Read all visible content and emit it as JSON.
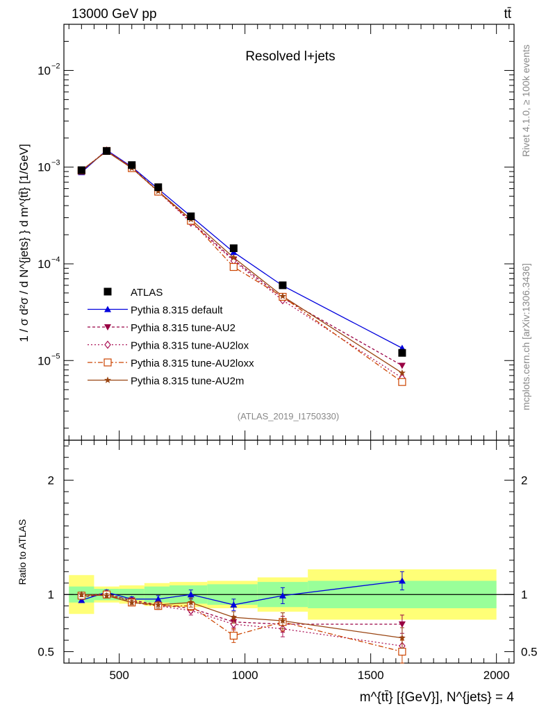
{
  "header": {
    "energy_label": "13000 GeV pp",
    "process_label": "tt̄"
  },
  "side_labels": {
    "rivet": "Rivet 4.1.0, ≥ 100k events",
    "mcplots": "mcplots.cern.ch [arXiv:1306.3436]"
  },
  "chart_data": {
    "type": "line",
    "title": "Resolved l+jets",
    "analysis_id": "(ATLAS_2019_I1750330)",
    "xlabel": "m^{tt̄} [{GeV}], N^{jets} = 4",
    "ylabel_main": "1 / σ d²σ / d N^{jets} } d m^{tt̄} [1/GeV]",
    "ylabel_ratio": "Ratio to ATLAS",
    "xlim": [
      280,
      2070
    ],
    "ylim_main_log": [
      1.5e-06,
      0.03
    ],
    "ylim_ratio": [
      0.4,
      2.35
    ],
    "x_ticks": [
      500,
      1000,
      1500,
      2000
    ],
    "x_tick_labels": [
      "500",
      "1000",
      "1500",
      "2000"
    ],
    "y_ticks_main": [
      "10^-5",
      "10^-4",
      "10^-3",
      "10^-2"
    ],
    "y_ticks_ratio": [
      "0.5",
      "1",
      "2"
    ],
    "bins": [
      [
        300,
        400
      ],
      [
        400,
        500
      ],
      [
        500,
        600
      ],
      [
        600,
        700
      ],
      [
        700,
        850
      ],
      [
        850,
        1050
      ],
      [
        1050,
        1250
      ],
      [
        1250,
        2000
      ]
    ],
    "x": [
      350,
      450,
      550,
      655,
      785,
      955,
      1150,
      1625
    ],
    "atlas": {
      "name": "ATLAS",
      "values": [
        0.00093,
        0.00147,
        0.00105,
        0.00062,
        0.00031,
        0.000145,
        6e-05,
        1.2e-05
      ]
    },
    "band_inner": [
      0.07,
      0.05,
      0.05,
      0.07,
      0.08,
      0.09,
      0.11,
      0.12
    ],
    "band_outer": [
      0.17,
      0.07,
      0.08,
      0.1,
      0.11,
      0.12,
      0.15,
      0.22
    ],
    "series": [
      {
        "name": "Pythia 8.315 default",
        "color": "#0000dd",
        "marker": "triangle-up",
        "dash": "",
        "ratio": [
          0.95,
          1.02,
          0.96,
          0.96,
          1.0,
          0.91,
          0.99,
          1.12
        ],
        "err": [
          0.02,
          0.02,
          0.02,
          0.03,
          0.04,
          0.05,
          0.07,
          0.08
        ]
      },
      {
        "name": "Pythia 8.315 tune-AU2",
        "color": "#990044",
        "marker": "triangle-down",
        "dash": "4,3",
        "ratio": [
          0.98,
          1.0,
          0.95,
          0.91,
          0.88,
          0.76,
          0.74,
          0.74
        ],
        "err": [
          0.02,
          0.02,
          0.02,
          0.03,
          0.04,
          0.05,
          0.07,
          0.08
        ]
      },
      {
        "name": "Pythia 8.315 tune-AU2lox",
        "color": "#aa1155",
        "marker": "diamond-open",
        "dash": "2,3",
        "ratio": [
          0.99,
          1.01,
          0.94,
          0.9,
          0.86,
          0.74,
          0.7,
          0.55
        ],
        "err": [
          0.02,
          0.02,
          0.02,
          0.03,
          0.04,
          0.05,
          0.07,
          0.08
        ]
      },
      {
        "name": "Pythia 8.315 tune-AU2loxx",
        "color": "#cc4400",
        "marker": "square-open",
        "dash": "7,3,2,3",
        "ratio": [
          0.99,
          1.0,
          0.93,
          0.9,
          0.9,
          0.64,
          0.76,
          0.5
        ],
        "err": [
          0.02,
          0.02,
          0.02,
          0.03,
          0.04,
          0.06,
          0.08,
          0.1
        ]
      },
      {
        "name": "Pythia 8.315 tune-AU2m",
        "color": "#994411",
        "marker": "star",
        "dash": "",
        "ratio": [
          1.0,
          0.99,
          0.93,
          0.91,
          0.93,
          0.8,
          0.77,
          0.62
        ],
        "err": [
          0.02,
          0.02,
          0.02,
          0.03,
          0.04,
          0.05,
          0.07,
          0.09
        ]
      }
    ]
  }
}
